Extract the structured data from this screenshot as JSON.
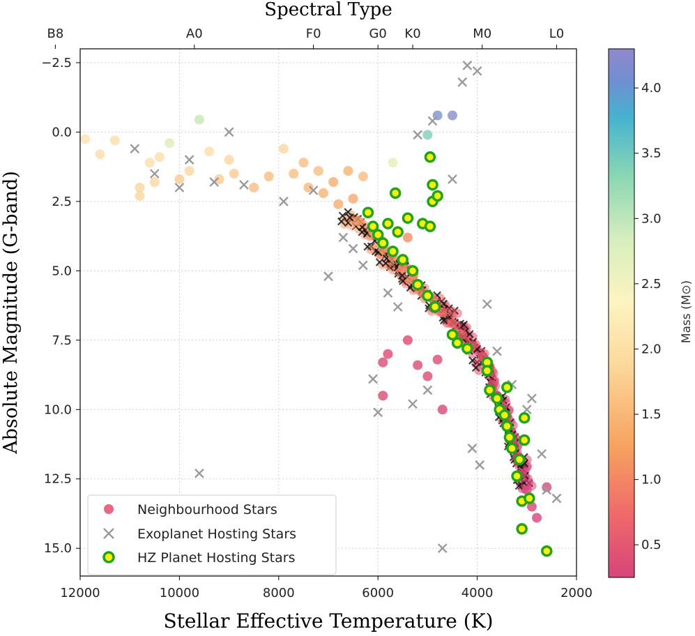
{
  "chart_data": {
    "type": "scatter",
    "title": "",
    "xlabel": "Stellar Effective Temperature (K)",
    "ylabel": "Absolute Magnitude (G-band)",
    "top_axis_label": "Spectral Type",
    "xlim": [
      12000,
      2000
    ],
    "ylim": [
      16,
      -3
    ],
    "x_inverted": true,
    "y_inverted": true,
    "grid": true,
    "x_ticks": [
      12000,
      10000,
      8000,
      6000,
      4000,
      2000
    ],
    "x_tick_labels": [
      "12000",
      "10000",
      "8000",
      "6000",
      "4000",
      "2000"
    ],
    "y_ticks": [
      -2.5,
      0.0,
      2.5,
      5.0,
      7.5,
      10.0,
      12.5,
      15.0
    ],
    "y_tick_labels": [
      "−2.5",
      "0.0",
      "2.5",
      "5.0",
      "7.5",
      "10.0",
      "12.5",
      "15.0"
    ],
    "spectral_types": [
      {
        "label": "B8",
        "temp": 12500
      },
      {
        "label": "A0",
        "temp": 9700
      },
      {
        "label": "F0",
        "temp": 7300
      },
      {
        "label": "G0",
        "temp": 6000
      },
      {
        "label": "K0",
        "temp": 5300
      },
      {
        "label": "M0",
        "temp": 3900
      },
      {
        "label": "L0",
        "temp": 2400
      }
    ],
    "colorbar": {
      "label": "Mass (M⊙)",
      "range": [
        0.25,
        4.3
      ],
      "ticks": [
        0.5,
        1.0,
        1.5,
        2.0,
        2.5,
        3.0,
        3.5,
        4.0
      ],
      "tick_labels": [
        "0.5",
        "1.0",
        "1.5",
        "2.0",
        "2.5",
        "3.0",
        "3.5",
        "4.0"
      ],
      "colormap": "Spectral_r (pink → orange → cream → green → blue → purple)"
    },
    "legend": {
      "placement": "lower-left",
      "entries": [
        "Neighbourhood Stars",
        "Exoplanet Hosting Stars",
        "HZ Planet Hosting Stars"
      ]
    },
    "series": [
      {
        "name": "Neighbourhood Stars",
        "marker": "circle, colored by mass",
        "points": [
          {
            "t": 11900,
            "m": 0.25,
            "mass": 2.0
          },
          {
            "t": 11600,
            "m": 0.8,
            "mass": 1.9
          },
          {
            "t": 11300,
            "m": 0.3,
            "mass": 1.9
          },
          {
            "t": 10800,
            "m": 2.0,
            "mass": 1.8
          },
          {
            "t": 10800,
            "m": 2.3,
            "mass": 1.8
          },
          {
            "t": 10600,
            "m": 1.1,
            "mass": 1.9
          },
          {
            "t": 10500,
            "m": 1.8,
            "mass": 1.8
          },
          {
            "t": 10400,
            "m": 0.9,
            "mass": 1.9
          },
          {
            "t": 10200,
            "m": 0.4,
            "mass": 2.5
          },
          {
            "t": 10000,
            "m": 1.7,
            "mass": 1.7
          },
          {
            "t": 9800,
            "m": 1.4,
            "mass": 1.8
          },
          {
            "t": 9600,
            "m": -0.45,
            "mass": 2.7
          },
          {
            "t": 9400,
            "m": 0.7,
            "mass": 1.9
          },
          {
            "t": 9200,
            "m": 1.7,
            "mass": 1.7
          },
          {
            "t": 9000,
            "m": 1.0,
            "mass": 1.8
          },
          {
            "t": 8900,
            "m": 1.5,
            "mass": 1.7
          },
          {
            "t": 8500,
            "m": 2.0,
            "mass": 1.6
          },
          {
            "t": 8200,
            "m": 1.6,
            "mass": 1.6
          },
          {
            "t": 7900,
            "m": 0.6,
            "mass": 1.8
          },
          {
            "t": 7700,
            "m": 1.5,
            "mass": 1.6
          },
          {
            "t": 7500,
            "m": 1.1,
            "mass": 1.6
          },
          {
            "t": 7400,
            "m": 2.0,
            "mass": 1.55
          },
          {
            "t": 7200,
            "m": 1.4,
            "mass": 1.6
          },
          {
            "t": 7100,
            "m": 2.2,
            "mass": 1.5
          },
          {
            "t": 6900,
            "m": 1.8,
            "mass": 1.45
          },
          {
            "t": 6800,
            "m": 2.6,
            "mass": 1.45
          },
          {
            "t": 6600,
            "m": 1.4,
            "mass": 1.5
          },
          {
            "t": 6500,
            "m": 2.4,
            "mass": 1.4
          },
          {
            "t": 6400,
            "m": 3.2,
            "mass": 1.3
          },
          {
            "t": 6300,
            "m": 1.6,
            "mass": 1.6
          },
          {
            "t": 6100,
            "m": 3.6,
            "mass": 1.2
          },
          {
            "t": 5900,
            "m": 4.2,
            "mass": 1.15
          },
          {
            "t": 5700,
            "m": 1.1,
            "mass": 2.4
          },
          {
            "t": 5700,
            "m": 4.5,
            "mass": 1.1
          },
          {
            "t": 5500,
            "m": 4.9,
            "mass": 1.05
          },
          {
            "t": 5400,
            "m": 3.8,
            "mass": 1.1
          },
          {
            "t": 5300,
            "m": 5.3,
            "mass": 1.0
          },
          {
            "t": 5100,
            "m": 5.8,
            "mass": 0.95
          },
          {
            "t": 5000,
            "m": 0.1,
            "mass": 3.2
          },
          {
            "t": 4900,
            "m": 6.0,
            "mass": 0.9
          },
          {
            "t": 4800,
            "m": -0.6,
            "mass": 4.1
          },
          {
            "t": 4700,
            "m": 6.5,
            "mass": 0.85
          },
          {
            "t": 4500,
            "m": -0.6,
            "mass": 4.2
          },
          {
            "t": 4500,
            "m": 6.9,
            "mass": 0.8
          },
          {
            "t": 4300,
            "m": 7.3,
            "mass": 0.75
          },
          {
            "t": 4100,
            "m": 7.7,
            "mass": 0.7
          },
          {
            "t": 3900,
            "m": 8.1,
            "mass": 0.65
          },
          {
            "t": 3800,
            "m": 8.6,
            "mass": 0.6
          },
          {
            "t": 3700,
            "m": 9.1,
            "mass": 0.55
          },
          {
            "t": 3600,
            "m": 9.5,
            "mass": 0.5
          },
          {
            "t": 3500,
            "m": 10.0,
            "mass": 0.45
          },
          {
            "t": 3400,
            "m": 10.5,
            "mass": 0.4
          },
          {
            "t": 3300,
            "m": 11.1,
            "mass": 0.35
          },
          {
            "t": 3200,
            "m": 11.7,
            "mass": 0.3
          },
          {
            "t": 3100,
            "m": 12.3,
            "mass": 0.3
          },
          {
            "t": 3000,
            "m": 12.9,
            "mass": 0.28
          },
          {
            "t": 2900,
            "m": 13.5,
            "mass": 0.27
          },
          {
            "t": 2800,
            "m": 13.9,
            "mass": 0.26
          },
          {
            "t": 2600,
            "m": 12.8,
            "mass": 0.3
          },
          {
            "t": 5900,
            "m": 8.3,
            "mass": 0.4
          },
          {
            "t": 5800,
            "m": 8.0,
            "mass": 0.45
          },
          {
            "t": 5900,
            "m": 9.5,
            "mass": 0.4
          },
          {
            "t": 5400,
            "m": 7.5,
            "mass": 0.45
          },
          {
            "t": 5200,
            "m": 8.4,
            "mass": 0.4
          },
          {
            "t": 5000,
            "m": 8.8,
            "mass": 0.4
          },
          {
            "t": 4700,
            "m": 10.0,
            "mass": 0.35
          },
          {
            "t": 4800,
            "m": 8.2,
            "mass": 0.45
          }
        ]
      },
      {
        "name": "Exoplanet Hosting Stars",
        "marker": "x, gray",
        "points": [
          {
            "t": 10900,
            "m": 0.6
          },
          {
            "t": 10500,
            "m": 1.5
          },
          {
            "t": 10000,
            "m": 2.0
          },
          {
            "t": 9800,
            "m": 1.0
          },
          {
            "t": 9600,
            "m": 12.3
          },
          {
            "t": 9300,
            "m": 1.8
          },
          {
            "t": 9000,
            "m": 0.0
          },
          {
            "t": 8700,
            "m": 1.9
          },
          {
            "t": 7900,
            "m": 2.5
          },
          {
            "t": 7300,
            "m": 2.1
          },
          {
            "t": 7000,
            "m": 5.2
          },
          {
            "t": 6700,
            "m": 3.8
          },
          {
            "t": 6500,
            "m": 4.2
          },
          {
            "t": 6300,
            "m": 4.8
          },
          {
            "t": 6100,
            "m": 8.9
          },
          {
            "t": 6000,
            "m": 10.1
          },
          {
            "t": 5800,
            "m": 5.8
          },
          {
            "t": 5600,
            "m": 6.3
          },
          {
            "t": 5300,
            "m": 9.8
          },
          {
            "t": 5200,
            "m": 0.1
          },
          {
            "t": 5000,
            "m": 9.3
          },
          {
            "t": 4900,
            "m": -0.4
          },
          {
            "t": 4700,
            "m": 15.0
          },
          {
            "t": 4500,
            "m": 1.7
          },
          {
            "t": 4300,
            "m": -1.8
          },
          {
            "t": 4200,
            "m": -2.4
          },
          {
            "t": 4100,
            "m": 11.4
          },
          {
            "t": 4000,
            "m": -2.2
          },
          {
            "t": 3950,
            "m": 12.0
          },
          {
            "t": 3800,
            "m": 6.2
          },
          {
            "t": 3600,
            "m": 7.9
          },
          {
            "t": 3300,
            "m": 9.1
          },
          {
            "t": 3000,
            "m": 10.0
          },
          {
            "t": 2900,
            "m": 9.6
          },
          {
            "t": 2700,
            "m": 11.6
          },
          {
            "t": 2600,
            "m": 12.9
          },
          {
            "t": 2400,
            "m": 13.2
          }
        ]
      },
      {
        "name": "HZ Planet Hosting Stars",
        "marker": "circle, green with yellow center",
        "points": [
          {
            "t": 6200,
            "m": 2.9
          },
          {
            "t": 6100,
            "m": 3.4
          },
          {
            "t": 6000,
            "m": 3.7
          },
          {
            "t": 5900,
            "m": 4.0
          },
          {
            "t": 5800,
            "m": 3.3
          },
          {
            "t": 5700,
            "m": 4.3
          },
          {
            "t": 5650,
            "m": 2.2
          },
          {
            "t": 5600,
            "m": 3.6
          },
          {
            "t": 5500,
            "m": 4.6
          },
          {
            "t": 5400,
            "m": 3.1
          },
          {
            "t": 5300,
            "m": 5.0
          },
          {
            "t": 5200,
            "m": 5.5
          },
          {
            "t": 5100,
            "m": 3.3
          },
          {
            "t": 5000,
            "m": 5.9
          },
          {
            "t": 4950,
            "m": 0.9
          },
          {
            "t": 4900,
            "m": 1.9
          },
          {
            "t": 4900,
            "m": 2.5
          },
          {
            "t": 4850,
            "m": 6.3
          },
          {
            "t": 4800,
            "m": 2.3
          },
          {
            "t": 4950,
            "m": 3.4
          },
          {
            "t": 4500,
            "m": 7.3
          },
          {
            "t": 4400,
            "m": 7.6
          },
          {
            "t": 4200,
            "m": 7.8
          },
          {
            "t": 3800,
            "m": 8.3
          },
          {
            "t": 3800,
            "m": 8.6
          },
          {
            "t": 3750,
            "m": 9.3
          },
          {
            "t": 3600,
            "m": 9.6
          },
          {
            "t": 3550,
            "m": 10.0
          },
          {
            "t": 3450,
            "m": 10.2
          },
          {
            "t": 3400,
            "m": 10.6
          },
          {
            "t": 3350,
            "m": 11.0
          },
          {
            "t": 3300,
            "m": 11.4
          },
          {
            "t": 3200,
            "m": 12.4
          },
          {
            "t": 3150,
            "m": 11.8
          },
          {
            "t": 3100,
            "m": 13.3
          },
          {
            "t": 3050,
            "m": 10.3
          },
          {
            "t": 3050,
            "m": 11.1
          },
          {
            "t": 2950,
            "m": 13.2
          },
          {
            "t": 3100,
            "m": 14.3
          },
          {
            "t": 2600,
            "m": 15.1
          },
          {
            "t": 3400,
            "m": 9.2
          }
        ]
      }
    ]
  }
}
